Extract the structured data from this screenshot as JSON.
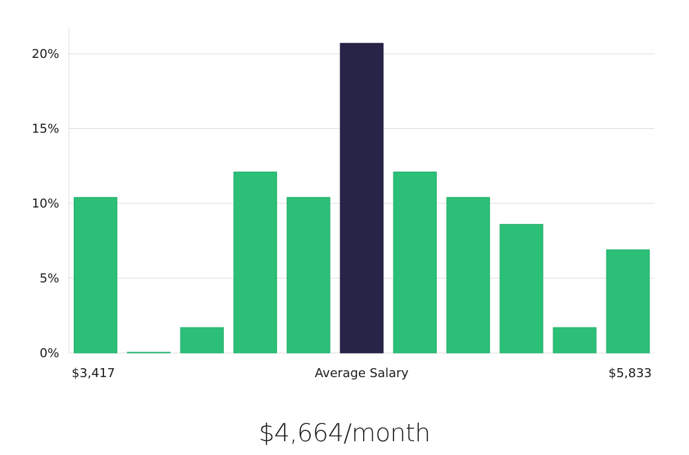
{
  "chart_data": {
    "type": "bar",
    "title": "",
    "xlabel": "Average Salary",
    "ylabel": "",
    "x_min_label": "$3,417",
    "x_max_label": "$5,833",
    "values": [
      10.4,
      0.05,
      1.7,
      12.1,
      10.4,
      20.7,
      12.1,
      10.4,
      8.6,
      1.7,
      6.9
    ],
    "highlight_index": 5,
    "ylim": [
      0,
      22
    ],
    "yticks": [
      0,
      5,
      10,
      15,
      20
    ],
    "ytick_labels": [
      "0%",
      "5%",
      "10%",
      "15%",
      "20%"
    ],
    "grid": true,
    "colors": {
      "bar": "#2bbf77",
      "highlight": "#282447",
      "grid": "#dddddd"
    }
  },
  "caption": "$4,664/month"
}
